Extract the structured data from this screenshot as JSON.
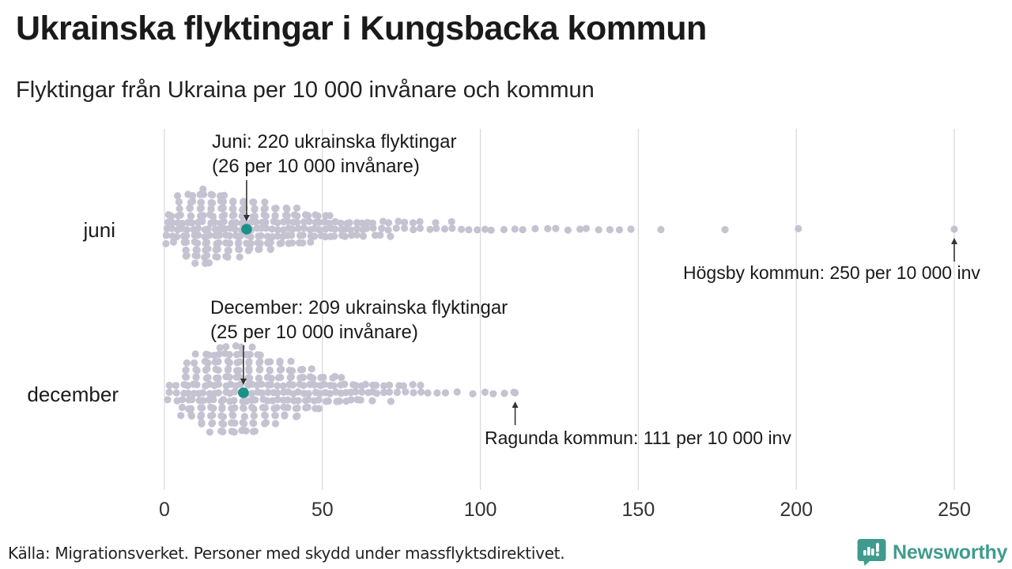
{
  "header": {
    "title": "Ukrainska flyktingar i Kungsbacka kommun",
    "subtitle": "Flyktingar från Ukraina per 10 000 invånare och kommun"
  },
  "footer": {
    "source": "Källa: Migrationsverket. Personer med skydd under massflyktsdirektivet.",
    "logo_text": "Newsworthy"
  },
  "colors": {
    "dot": "#c5c3d1",
    "highlight": "#1a9186",
    "grid": "#dadada",
    "axis_text": "#333333",
    "text": "#1a1a1a",
    "arrow": "#333333",
    "logo": "#3f9b8d"
  },
  "chart_data": {
    "type": "beeswarm",
    "title": "Ukrainska flyktingar i Kungsbacka kommun",
    "subtitle": "Flyktingar från Ukraina per 10 000 invånare och kommun",
    "unit": "flyktingar per 10 000 invånare per kommun",
    "xlim": [
      0,
      250
    ],
    "x_ticks": [
      0,
      50,
      100,
      150,
      200,
      250
    ],
    "grid": true,
    "rows": [
      {
        "label": "juni",
        "annotation_line1": "Juni: 220 ukrainska flyktingar",
        "annotation_line2": "(26 per 10 000 invånare)",
        "highlight": {
          "kommun": "Kungsbacka",
          "value_per_10000": 26,
          "refugees": 220
        },
        "outlier": {
          "label": "Högsby kommun: 250 per 10 000 inv",
          "kommun": "Högsby",
          "value_per_10000": 250
        },
        "bins_width": 5,
        "bins": [
          [
            0,
            14
          ],
          [
            5,
            30
          ],
          [
            10,
            34
          ],
          [
            15,
            30
          ],
          [
            20,
            26
          ],
          [
            25,
            24
          ],
          [
            30,
            22
          ],
          [
            35,
            18
          ],
          [
            40,
            16
          ],
          [
            45,
            13
          ],
          [
            50,
            11
          ],
          [
            55,
            9
          ],
          [
            60,
            8
          ],
          [
            65,
            6
          ],
          [
            70,
            5
          ],
          [
            75,
            4
          ],
          [
            80,
            3
          ],
          [
            85,
            3
          ],
          [
            90,
            3
          ],
          [
            95,
            2
          ],
          [
            100,
            2
          ],
          [
            105,
            1
          ],
          [
            110,
            2
          ],
          [
            115,
            1
          ],
          [
            120,
            2
          ],
          [
            125,
            1
          ],
          [
            130,
            2
          ],
          [
            135,
            1
          ],
          [
            140,
            2
          ],
          [
            145,
            1
          ],
          [
            155,
            1
          ],
          [
            175,
            1
          ],
          [
            198,
            1
          ]
        ]
      },
      {
        "label": "december",
        "annotation_line1": "December: 209 ukrainska flyktingar",
        "annotation_line2": "(25 per 10 000 invånare)",
        "highlight": {
          "kommun": "Kungsbacka",
          "value_per_10000": 25,
          "refugees": 209
        },
        "outlier": {
          "label": "Ragunda kommun: 111 per 10 000 inv",
          "kommun": "Ragunda",
          "value_per_10000": 111
        },
        "bins_width": 5,
        "bins": [
          [
            0,
            6
          ],
          [
            5,
            22
          ],
          [
            10,
            30
          ],
          [
            15,
            34
          ],
          [
            20,
            36
          ],
          [
            25,
            34
          ],
          [
            30,
            28
          ],
          [
            35,
            24
          ],
          [
            40,
            20
          ],
          [
            45,
            16
          ],
          [
            50,
            12
          ],
          [
            55,
            10
          ],
          [
            60,
            8
          ],
          [
            65,
            7
          ],
          [
            70,
            5
          ],
          [
            75,
            4
          ],
          [
            80,
            3
          ],
          [
            85,
            2
          ],
          [
            90,
            1
          ],
          [
            95,
            1
          ],
          [
            100,
            2
          ],
          [
            105,
            1
          ],
          [
            108,
            1
          ]
        ]
      }
    ]
  }
}
